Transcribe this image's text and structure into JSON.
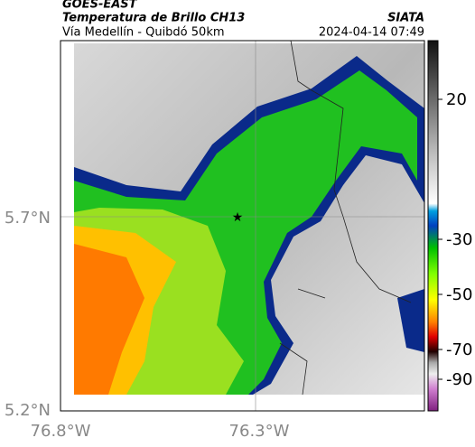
{
  "header": {
    "title": "GOES-EAST",
    "subtitle": "Temperatura de Brillo CH13",
    "location": "Vía Medellín - Quibdó 50km",
    "source": "SIATA",
    "timestamp": "2024-04-14 07:49"
  },
  "axes": {
    "latitude_labels": [
      "5.7°N",
      "5.2°N"
    ],
    "longitude_labels": [
      "76.8°W",
      "76.3°W"
    ]
  },
  "colorbar": {
    "ticks": [
      20,
      -30,
      -50,
      -70,
      -90
    ]
  }
}
